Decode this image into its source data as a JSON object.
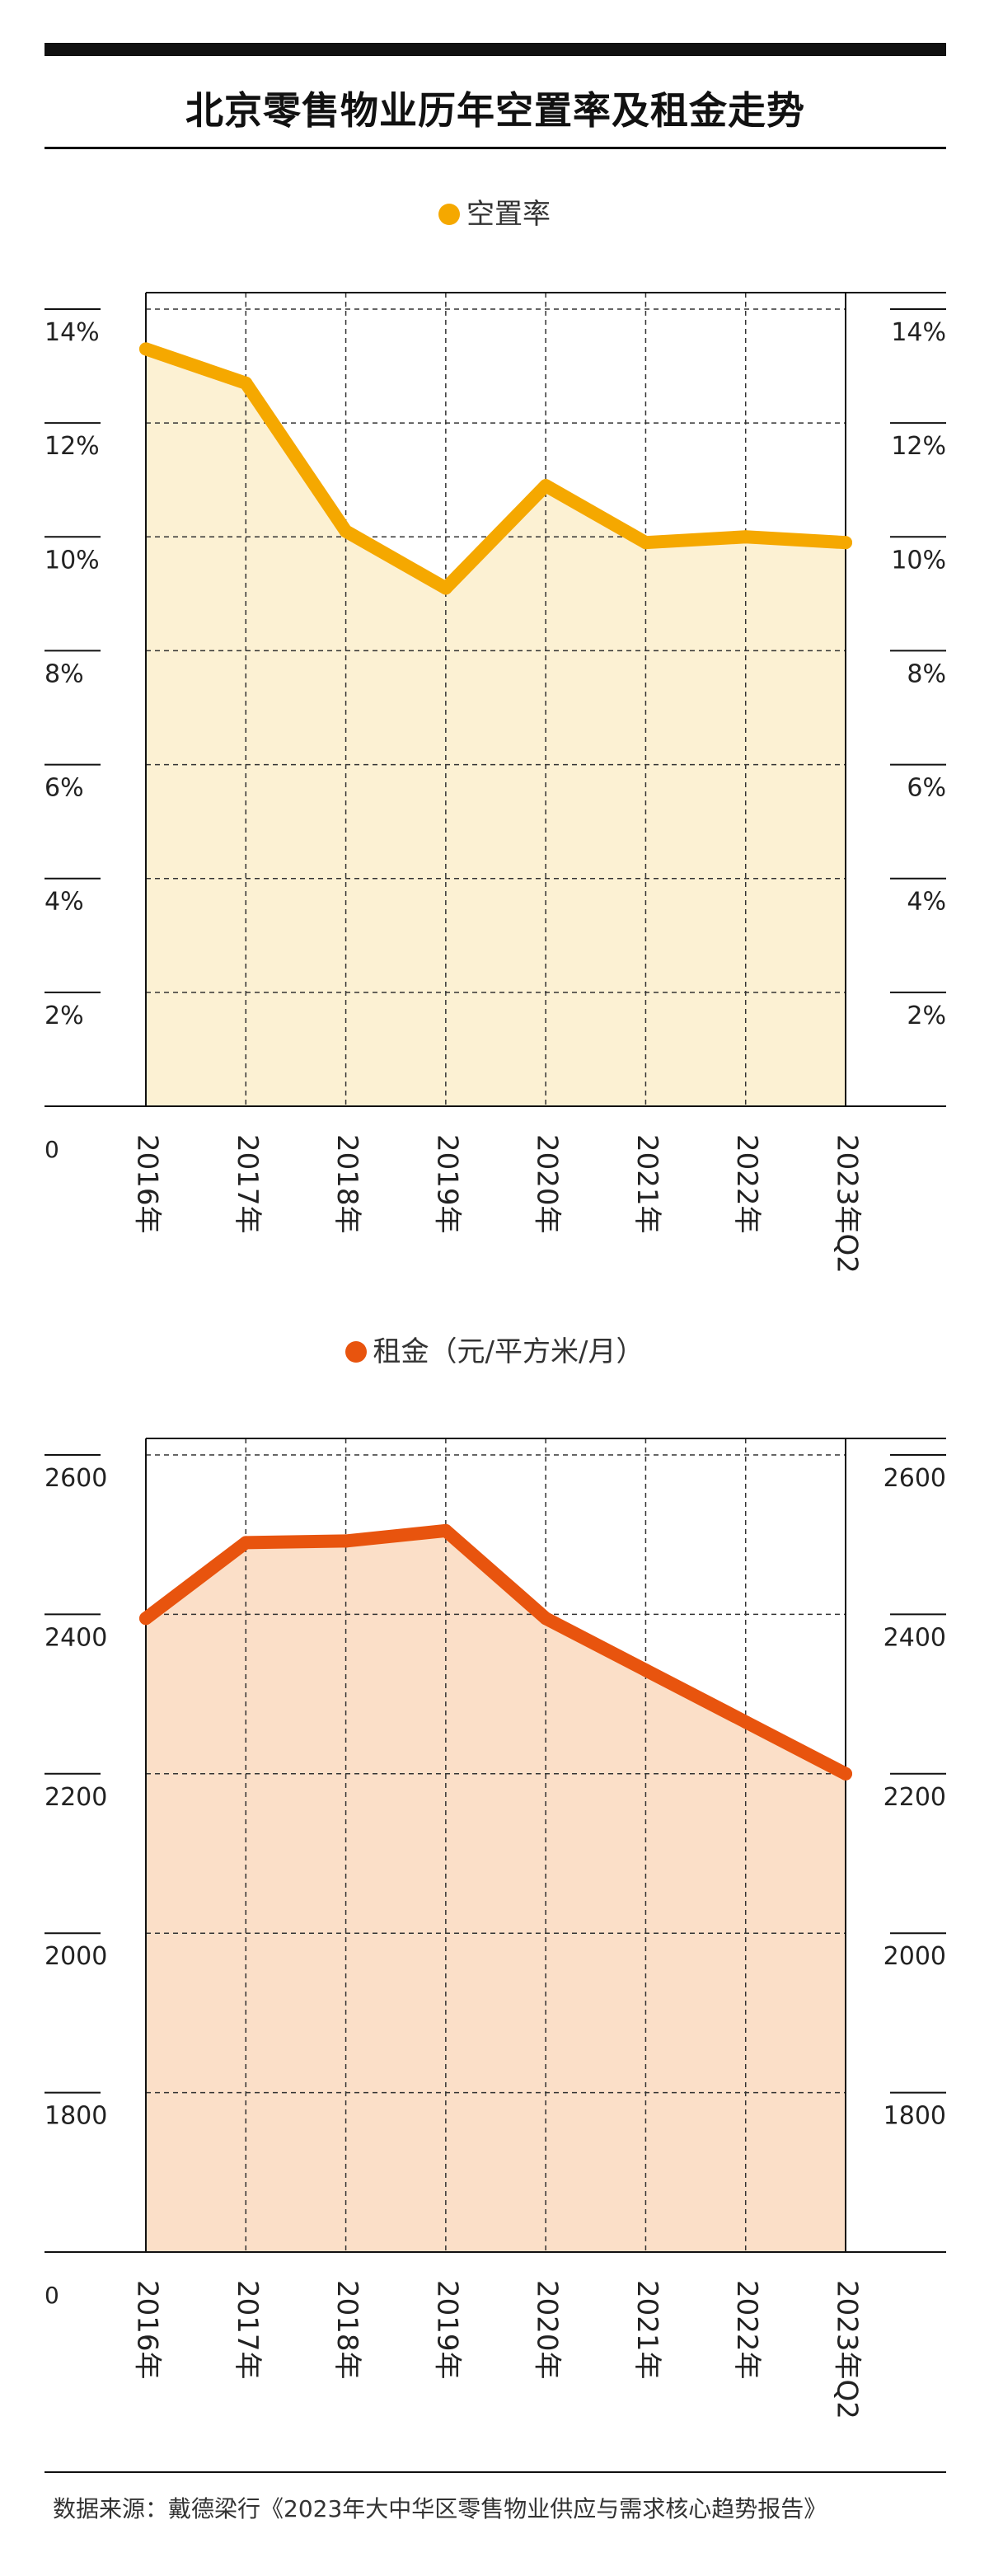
{
  "title": "北京零售物业历年空置率及租金走势",
  "source": "数据来源：戴德梁行《2023年大中华区零售物业供应与需求核心趋势报告》",
  "colors": {
    "vacancy_line": "#F5A800",
    "vacancy_fill": "#FCF1D3",
    "rent_line": "#E8540E",
    "rent_fill": "#FBDFC8"
  },
  "chart_data": [
    {
      "type": "area",
      "legend": "空置率",
      "categories": [
        "2016年",
        "2017年",
        "2018年",
        "2019年",
        "2020年",
        "2021年",
        "2022年",
        "2023年Q2"
      ],
      "values": [
        13.3,
        12.7,
        10.1,
        9.1,
        10.9,
        9.9,
        10.0,
        9.9
      ],
      "ylim": [
        0,
        14
      ],
      "yticks": [
        2,
        4,
        6,
        8,
        10,
        12,
        14
      ],
      "ytick_labels": [
        "2%",
        "4%",
        "6%",
        "8%",
        "10%",
        "12%",
        "14%"
      ],
      "zero_label": "0",
      "grid": true,
      "legend_position": "top-center"
    },
    {
      "type": "area",
      "legend": "租金（元/平方米/月）",
      "categories": [
        "2016年",
        "2017年",
        "2018年",
        "2019年",
        "2020年",
        "2021年",
        "2022年",
        "2023年Q2"
      ],
      "values": [
        2395,
        2490,
        2492,
        2505,
        2395,
        2330,
        2265,
        2200
      ],
      "ylim": [
        1600,
        2600
      ],
      "yticks": [
        1800,
        2000,
        2200,
        2400,
        2600
      ],
      "ytick_labels": [
        "1800",
        "2000",
        "2200",
        "2400",
        "2600"
      ],
      "zero_label": "0",
      "grid": true,
      "legend_position": "top-center"
    }
  ]
}
